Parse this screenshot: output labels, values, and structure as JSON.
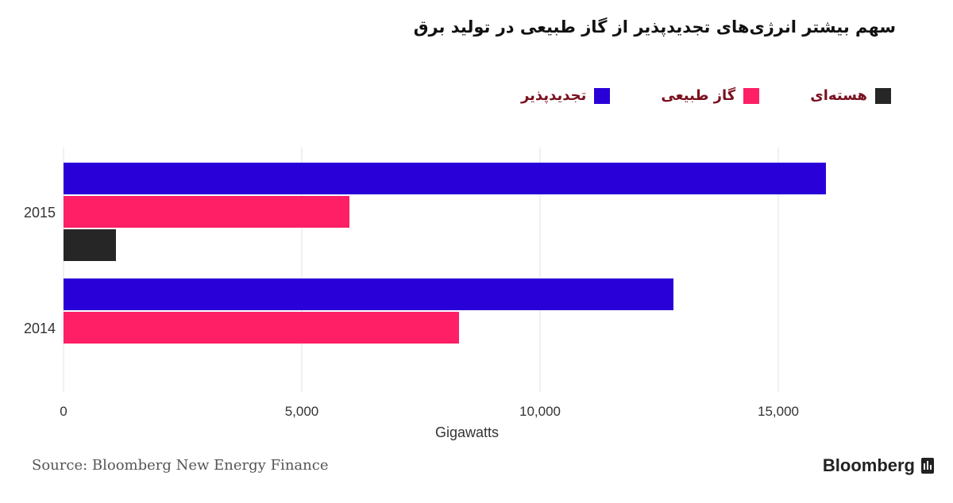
{
  "chart_data": {
    "type": "bar",
    "orientation": "horizontal",
    "title": "سهم بیشتر انرژی‌های تجدیدپذیر از گاز طبیعی در تولید برق",
    "xlabel": "Gigawatts",
    "ylabel": "",
    "xlim": [
      0,
      18000
    ],
    "xticks": [
      0,
      5000,
      10000,
      15000
    ],
    "xtick_labels": [
      "0",
      "5,000",
      "10,000",
      "15,000"
    ],
    "grid": true,
    "legend_position": "top-right",
    "categories": [
      "2015",
      "2014"
    ],
    "series": [
      {
        "name": "تجدیدپذیر",
        "color": "#2a00d8",
        "values": [
          16000,
          12800
        ]
      },
      {
        "name": "گاز طبیعی",
        "color": "#fe1f66",
        "values": [
          6000,
          8300
        ]
      },
      {
        "name": "هسته‌ای",
        "color": "#262626",
        "values": [
          1100,
          null
        ]
      }
    ]
  },
  "legend": [
    {
      "label": "هسته‌ای",
      "color": "#262626"
    },
    {
      "label": "گاز طبیعی",
      "color": "#fe1f66"
    },
    {
      "label": "تجدیدپذیر",
      "color": "#2a00d8"
    }
  ],
  "footer": {
    "source": "Source: Bloomberg New Energy Finance",
    "brand": "Bloomberg"
  }
}
